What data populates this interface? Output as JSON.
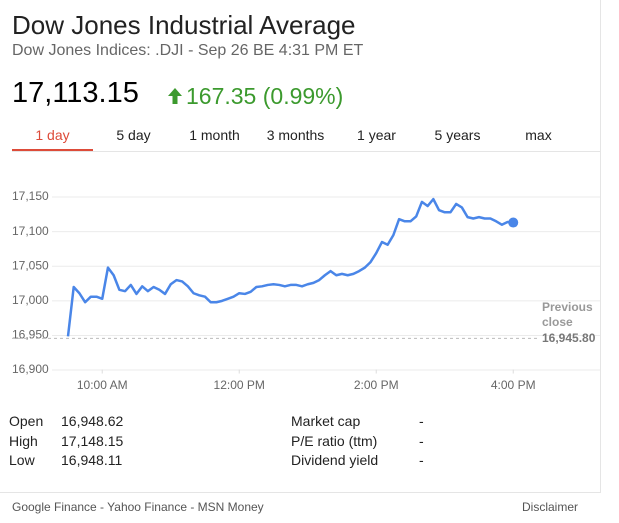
{
  "header": {
    "title": "Dow Jones Industrial Average",
    "subtitle": "Dow Jones Indices: .DJI - Sep 26 BE 4:31 PM ET"
  },
  "quote": {
    "price": "17,113.15",
    "change": "167.35 (0.99%)"
  },
  "tabs": [
    "1 day",
    "5 day",
    "1 month",
    "3 months",
    "1 year",
    "5 years",
    "max"
  ],
  "chart_data": {
    "type": "line",
    "x": [
      570,
      575,
      580,
      585,
      590,
      595,
      600,
      605,
      610,
      615,
      620,
      625,
      630,
      635,
      640,
      645,
      650,
      655,
      660,
      665,
      670,
      675,
      680,
      685,
      690,
      695,
      700,
      705,
      710,
      715,
      720,
      725,
      730,
      735,
      740,
      745,
      750,
      755,
      760,
      765,
      770,
      775,
      780,
      785,
      790,
      795,
      800,
      805,
      810,
      815,
      820,
      825,
      830,
      835,
      840,
      845,
      850,
      855,
      860,
      865,
      870,
      875,
      880,
      885,
      890,
      895,
      900,
      905,
      910,
      915,
      920,
      925,
      930,
      935,
      940,
      945,
      950,
      955,
      960
    ],
    "series": [
      {
        "color": "#4a86e8",
        "values": [
          16948.62,
          17020,
          17011,
          16998,
          17006,
          17006,
          17003,
          17048,
          17037,
          17016,
          17014,
          17023,
          17010,
          17021,
          17014,
          17020,
          17016,
          17010,
          17024,
          17030,
          17028,
          17021,
          17011,
          17008,
          17006,
          16998,
          16998,
          17000,
          17003,
          17006,
          17011,
          17010,
          17013,
          17020,
          17021,
          17023,
          17024,
          17023,
          17021,
          17023,
          17023,
          17021,
          17024,
          17026,
          17030,
          17037,
          17043,
          17037,
          17039,
          17037,
          17039,
          17043,
          17048,
          17056,
          17069,
          17085,
          17081,
          17095,
          17118,
          17115,
          17115,
          17122,
          17143,
          17137,
          17147,
          17131,
          17128,
          17128,
          17140,
          17135,
          17121,
          17119,
          17121,
          17119,
          17119,
          17115,
          17110,
          17114,
          17113.15
        ]
      }
    ],
    "xlim": [
      563,
      1036
    ],
    "xticks": [
      {
        "value": 600,
        "label": "10:00 AM"
      },
      {
        "value": 720,
        "label": "12:00 PM"
      },
      {
        "value": 840,
        "label": "2:00 PM"
      },
      {
        "value": 960,
        "label": "4:00 PM"
      }
    ],
    "ylim": [
      16895,
      17205
    ],
    "yticks": [
      {
        "value": 16900,
        "label": "16,900"
      },
      {
        "value": 16950,
        "label": "16,950"
      },
      {
        "value": 17000,
        "label": "17,000"
      },
      {
        "value": 17050,
        "label": "17,050"
      },
      {
        "value": 17100,
        "label": "17,100"
      },
      {
        "value": 17150,
        "label": "17,150"
      }
    ],
    "grid": true,
    "previous_close": {
      "title": "Previous close",
      "value": 16945.8,
      "label": "16,945.80"
    }
  },
  "stats": {
    "left": [
      [
        "Open",
        "16,948.62"
      ],
      [
        "High",
        "17,148.15"
      ],
      [
        "Low",
        "16,948.11"
      ]
    ],
    "right": [
      [
        "Market cap",
        "-"
      ],
      [
        "P/E ratio (ttm)",
        "-"
      ],
      [
        "Dividend yield",
        "-"
      ]
    ]
  },
  "footer": {
    "sources": "Google Finance - Yahoo Finance - MSN Money",
    "disclaimer": "Disclaimer"
  }
}
